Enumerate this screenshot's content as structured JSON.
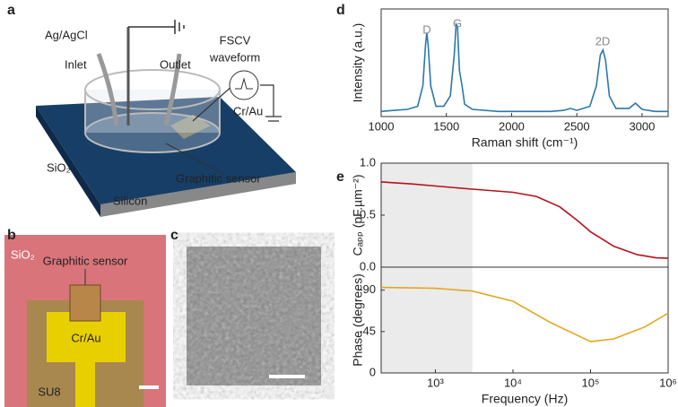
{
  "panel_labels": [
    "a",
    "b",
    "c",
    "d",
    "e"
  ],
  "diagram_a": {
    "labels": [
      "Ag/AgCl",
      "Inlet",
      "Outlet",
      "FSCV",
      "waveform",
      "Cr/Au",
      "SiO₂",
      "Silicon",
      "Graphitic sensor"
    ]
  },
  "image_b": {
    "labels": [
      "Graphitic sensor",
      "SiO₂",
      "Cr/Au",
      "SU8"
    ]
  },
  "chart_data": [
    {
      "type": "line",
      "xlabel": "Raman shift (cm⁻¹)",
      "ylabel": "Intensity (a.u.)",
      "color": "#2a78ad",
      "annotations": [
        "D",
        "G",
        "2D"
      ],
      "x": [
        1000,
        1100,
        1200,
        1280,
        1320,
        1340,
        1350,
        1360,
        1380,
        1420,
        1480,
        1530,
        1560,
        1575,
        1585,
        1600,
        1620,
        1640,
        1700,
        1900,
        2100,
        2300,
        2400,
        2450,
        2500,
        2600,
        2650,
        2680,
        2700,
        2720,
        2750,
        2800,
        2900,
        2950,
        3000,
        3100,
        3200
      ],
      "values": [
        0.05,
        0.06,
        0.07,
        0.1,
        0.3,
        0.7,
        0.82,
        0.7,
        0.3,
        0.1,
        0.1,
        0.2,
        0.6,
        0.9,
        0.88,
        0.45,
        0.3,
        0.12,
        0.07,
        0.05,
        0.05,
        0.05,
        0.06,
        0.08,
        0.06,
        0.1,
        0.3,
        0.6,
        0.65,
        0.55,
        0.2,
        0.08,
        0.08,
        0.13,
        0.07,
        0.05,
        0.05
      ],
      "xlim": [
        1000,
        3200
      ],
      "ylim": [
        0,
        1.05
      ],
      "xticks": [
        1000,
        1500,
        2000,
        2500,
        3000
      ]
    },
    {
      "type": "line",
      "ylabel": "Cₐₚₚ (pF.µm⁻²)",
      "color": "#b5121b",
      "xlog": true,
      "shaded_range": [
        200,
        3000
      ],
      "x": [
        200,
        500,
        1000,
        3000,
        10000,
        20000,
        40000,
        70000,
        100000,
        200000,
        400000,
        700000,
        1000000
      ],
      "values": [
        0.82,
        0.8,
        0.78,
        0.75,
        0.72,
        0.68,
        0.58,
        0.44,
        0.34,
        0.2,
        0.12,
        0.09,
        0.085
      ],
      "xlim": [
        200,
        1000000
      ],
      "ylim": [
        0,
        1.0
      ],
      "yticks": [
        {
          "value": 0,
          "label": "0.0"
        },
        {
          "value": 0.5,
          "label": "0.5"
        },
        {
          "value": 1,
          "label": "1.0"
        }
      ]
    },
    {
      "type": "line",
      "ylabel": "Phase (degrees)",
      "xlabel": "Frequency (Hz)",
      "color": "#e0a81c",
      "xlog": true,
      "shaded_range": [
        200,
        3000
      ],
      "x": [
        200,
        1000,
        3000,
        10000,
        30000,
        100000,
        200000,
        500000,
        1000000
      ],
      "values": [
        -93,
        -92,
        -89,
        -78,
        -55,
        -34,
        -37,
        -50,
        -65
      ],
      "xlim": [
        200,
        1000000
      ],
      "ylim": [
        0,
        -115
      ],
      "yticks": [
        -90,
        -45,
        0
      ],
      "xticks": [
        {
          "value": 1000,
          "label": "10³"
        },
        {
          "value": 10000,
          "label": "10⁴"
        },
        {
          "value": 100000,
          "label": "10⁵"
        },
        {
          "value": 1000000,
          "label": "10⁶"
        }
      ]
    }
  ]
}
